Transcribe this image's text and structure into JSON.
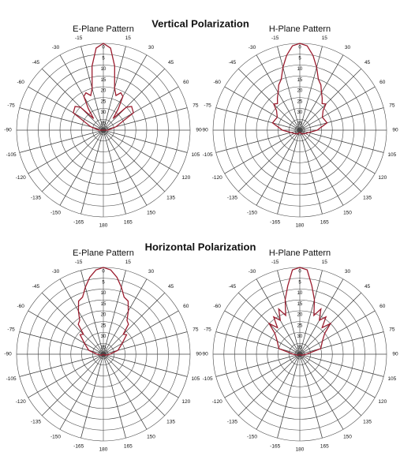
{
  "headings": [
    "Vertical Polarization",
    "Horizontal Polarization"
  ],
  "chart_data": [
    {
      "type": "polar",
      "title": "E-Plane Pattern",
      "color": "#9b1c2e",
      "theta": [
        -180,
        -150,
        -120,
        -90,
        -75,
        -60,
        -50,
        -45,
        -40,
        -35,
        -30,
        -25,
        -20,
        -15,
        -10,
        -5,
        0,
        5,
        10,
        15,
        20,
        25,
        30,
        35,
        40,
        45,
        50,
        60,
        75,
        90,
        120,
        150,
        180
      ],
      "values": [
        40,
        40,
        40,
        38,
        34,
        24,
        23,
        25,
        33,
        28,
        22,
        21,
        23,
        20,
        10,
        2,
        0,
        2,
        10,
        20,
        23,
        21,
        22,
        28,
        33,
        25,
        23,
        24,
        34,
        38,
        40,
        40,
        40
      ],
      "rlim": [
        0,
        40
      ],
      "rticks": [
        0,
        5,
        10,
        15,
        20,
        25,
        30,
        35
      ],
      "thetaticks": [
        15,
        30,
        45,
        60,
        75,
        90,
        105,
        120,
        135,
        150,
        165,
        180,
        -165,
        -150,
        -135,
        -120,
        -105,
        -90,
        -75,
        -60,
        -45,
        -30,
        -15
      ]
    },
    {
      "type": "polar",
      "title": "H-Plane Pattern",
      "color": "#9b1c2e",
      "theta": [
        -180,
        -150,
        -120,
        -90,
        -75,
        -60,
        -50,
        -45,
        -40,
        -35,
        -30,
        -25,
        -20,
        -15,
        -10,
        -5,
        0,
        5,
        10,
        15,
        20,
        25,
        30,
        35,
        40,
        45,
        50,
        60,
        75,
        90,
        120,
        150,
        180
      ],
      "values": [
        39,
        38,
        37,
        32,
        27,
        28,
        26,
        23,
        24,
        22,
        20,
        17,
        15,
        10,
        5,
        1,
        0,
        1,
        5,
        10,
        15,
        17,
        20,
        22,
        24,
        23,
        26,
        28,
        27,
        32,
        37,
        38,
        39
      ],
      "rlim": [
        0,
        40
      ],
      "rticks": [
        0,
        5,
        10,
        15,
        20,
        25,
        30,
        35
      ],
      "thetaticks": [
        15,
        30,
        45,
        60,
        75,
        90,
        105,
        120,
        135,
        150,
        165,
        180,
        -165,
        -150,
        -135,
        -120,
        -105,
        -90,
        -75,
        -60,
        -45,
        -30,
        -15
      ]
    },
    {
      "type": "polar",
      "title": "E-Plane Pattern",
      "color": "#9b1c2e",
      "theta": [
        -180,
        -150,
        -120,
        -90,
        -75,
        -60,
        -50,
        -45,
        -40,
        -35,
        -30,
        -25,
        -20,
        -15,
        -10,
        -5,
        0,
        5,
        10,
        15,
        20,
        25,
        30,
        35,
        40,
        45,
        50,
        60,
        75,
        90,
        120,
        150,
        180
      ],
      "values": [
        40,
        40,
        39,
        37,
        33,
        30,
        26,
        27,
        22,
        21,
        17,
        13,
        12,
        8,
        4,
        1,
        0,
        1,
        4,
        8,
        12,
        13,
        17,
        21,
        22,
        27,
        26,
        30,
        33,
        37,
        39,
        40,
        40
      ],
      "rlim": [
        0,
        40
      ],
      "rticks": [
        0,
        5,
        10,
        15,
        20,
        25,
        30,
        35
      ],
      "thetaticks": [
        15,
        30,
        45,
        60,
        75,
        90,
        105,
        120,
        135,
        150,
        165,
        180,
        -165,
        -150,
        -135,
        -120,
        -105,
        -90,
        -75,
        -60,
        -45,
        -30,
        -15
      ]
    },
    {
      "type": "polar",
      "title": "H-Plane Pattern",
      "color": "#9b1c2e",
      "theta": [
        -180,
        -150,
        -120,
        -90,
        -75,
        -60,
        -50,
        -45,
        -40,
        -35,
        -30,
        -25,
        -20,
        -15,
        -10,
        -5,
        0,
        5,
        10,
        15,
        20,
        25,
        30,
        35,
        40,
        45,
        50,
        60,
        75,
        90,
        120,
        150,
        180
      ],
      "values": [
        40,
        40,
        39,
        37,
        30,
        28,
        25,
        20,
        24,
        19,
        22,
        17,
        21,
        14,
        8,
        1,
        0,
        1,
        8,
        14,
        21,
        17,
        22,
        19,
        24,
        20,
        25,
        28,
        30,
        37,
        39,
        40,
        40
      ],
      "rlim": [
        0,
        40
      ],
      "rticks": [
        0,
        5,
        10,
        15,
        20,
        25,
        30,
        35
      ],
      "thetaticks": [
        15,
        30,
        45,
        60,
        75,
        90,
        105,
        120,
        135,
        150,
        165,
        180,
        -165,
        -150,
        -135,
        -120,
        -105,
        -90,
        -75,
        -60,
        -45,
        -30,
        -15
      ]
    }
  ]
}
